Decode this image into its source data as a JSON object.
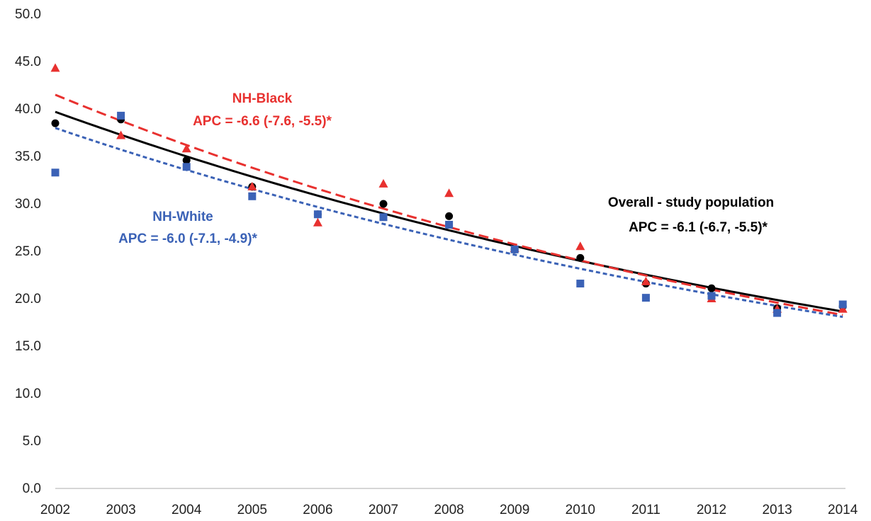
{
  "chart_data": {
    "type": "scatter",
    "x": [
      2002,
      2003,
      2004,
      2005,
      2006,
      2007,
      2008,
      2009,
      2010,
      2011,
      2012,
      2013,
      2014
    ],
    "ylim": [
      0,
      50
    ],
    "yticks": [
      "0.0",
      "5.0",
      "10.0",
      "15.0",
      "20.0",
      "25.0",
      "30.0",
      "35.0",
      "40.0",
      "45.0",
      "50.0"
    ],
    "xticks": [
      "2002",
      "2003",
      "2004",
      "2005",
      "2006",
      "2007",
      "2008",
      "2009",
      "2010",
      "2011",
      "2012",
      "2013",
      "2014"
    ],
    "grid": false,
    "series": [
      {
        "key": "overall",
        "marker": "circle",
        "color": "#000000",
        "line_style": "solid",
        "values": [
          38.5,
          38.9,
          34.6,
          31.8,
          28.9,
          30.0,
          28.7,
          25.2,
          24.3,
          21.6,
          21.1,
          19.0,
          19.2
        ],
        "trend_start": 39.7,
        "apc": -6.1
      },
      {
        "key": "nh_black",
        "marker": "triangle",
        "color": "#e8312f",
        "line_style": "dashed",
        "values": [
          44.3,
          37.2,
          35.8,
          31.8,
          28.0,
          32.1,
          31.1,
          25.3,
          25.5,
          21.8,
          20.0,
          18.9,
          18.9
        ],
        "trend_start": 41.5,
        "apc": -6.6
      },
      {
        "key": "nh_white",
        "marker": "square",
        "color": "#3b62b6",
        "line_style": "dotted",
        "values": [
          33.3,
          39.3,
          33.9,
          30.8,
          28.9,
          28.6,
          27.8,
          25.2,
          21.6,
          20.1,
          20.3,
          18.5,
          19.4
        ],
        "trend_start": 38.0,
        "apc": -6.0
      }
    ],
    "annotations": [
      {
        "key": "black_name",
        "text": "NH-Black",
        "color": "#e8312f"
      },
      {
        "key": "black_apc",
        "text": "APC = -6.6 (-7.6, -5.5)*",
        "color": "#e8312f"
      },
      {
        "key": "white_name",
        "text": "NH-White",
        "color": "#3b62b6"
      },
      {
        "key": "white_apc",
        "text": "APC = -6.0 (-7.1, -4.9)*",
        "color": "#3b62b6"
      },
      {
        "key": "overall_name",
        "text": "Overall - study population",
        "color": "#000000"
      },
      {
        "key": "overall_apc",
        "text": "APC = -6.1 (-6.7, -5.5)*",
        "color": "#000000"
      }
    ]
  }
}
